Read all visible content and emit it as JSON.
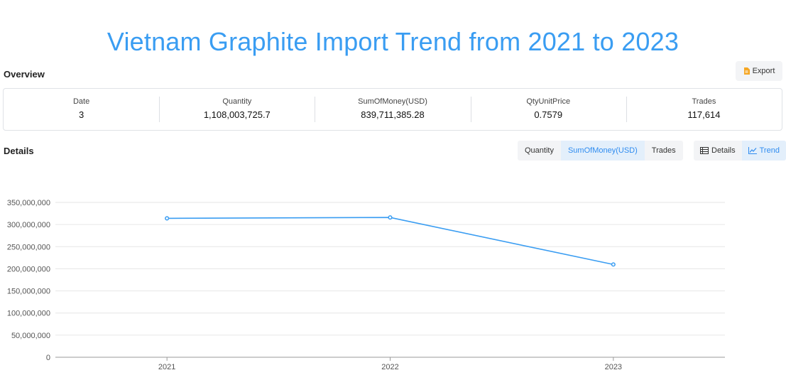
{
  "title": "Vietnam Graphite Import Trend from 2021 to 2023",
  "overview": {
    "heading": "Overview",
    "export_label": "Export",
    "stats": [
      {
        "label": "Date",
        "value": "3"
      },
      {
        "label": "Quantity",
        "value": "1,108,003,725.7"
      },
      {
        "label": "SumOfMoney(USD)",
        "value": "839,711,385.28"
      },
      {
        "label": "QtyUnitPrice",
        "value": "0.7579"
      },
      {
        "label": "Trades",
        "value": "117,614"
      }
    ]
  },
  "details": {
    "heading": "Details",
    "metric_tabs": [
      "Quantity",
      "SumOfMoney(USD)",
      "Trades"
    ],
    "active_metric": "SumOfMoney(USD)",
    "view_tabs": [
      "Details",
      "Trend"
    ],
    "active_view": "Trend"
  },
  "colors": {
    "accent": "#3a9df2",
    "line": "#3a9df2",
    "grid": "#e6e6e6",
    "export_icon": "#f5a623"
  },
  "icons": {
    "export": "document-icon",
    "details": "table-icon",
    "trend": "line-chart-icon"
  },
  "chart_data": {
    "type": "line",
    "categories": [
      "2021",
      "2022",
      "2023"
    ],
    "series": [
      {
        "values": [
          314000000,
          316000000,
          209700000
        ]
      }
    ],
    "yticks": [
      "0",
      "50,000,000",
      "100,000,000",
      "150,000,000",
      "200,000,000",
      "250,000,000",
      "300,000,000",
      "350,000,000"
    ],
    "ylim": [
      0,
      350000000
    ],
    "grid": true
  }
}
